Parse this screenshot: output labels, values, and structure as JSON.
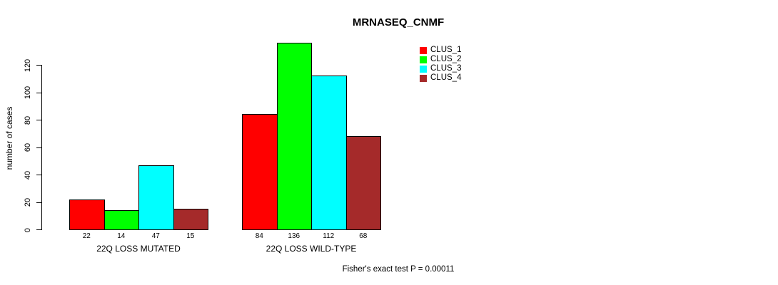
{
  "title": "MRNASEQ_CNMF",
  "footer": "Fisher's exact test P = 0.00011",
  "chart_data": {
    "type": "bar",
    "title": "MRNASEQ_CNMF",
    "xlabel": "",
    "ylabel": "number of cases",
    "ylim": [
      0,
      136
    ],
    "yticks": [
      0,
      20,
      40,
      60,
      80,
      100,
      120
    ],
    "grid": false,
    "legend_position": "top-right",
    "bar_border_color": "#000000",
    "categories": [
      "22Q LOSS MUTATED",
      "22Q LOSS WILD-TYPE"
    ],
    "series": [
      {
        "name": "CLUS_1",
        "color": "#ff0000",
        "values": [
          22,
          84
        ]
      },
      {
        "name": "CLUS_2",
        "color": "#00ff00",
        "values": [
          14,
          136
        ]
      },
      {
        "name": "CLUS_3",
        "color": "#00ffff",
        "values": [
          47,
          112
        ]
      },
      {
        "name": "CLUS_4",
        "color": "#a52a2a",
        "values": [
          15,
          68
        ]
      }
    ],
    "bar_value_labels_shown": true,
    "annotation": "Fisher's exact test P = 0.00011"
  }
}
